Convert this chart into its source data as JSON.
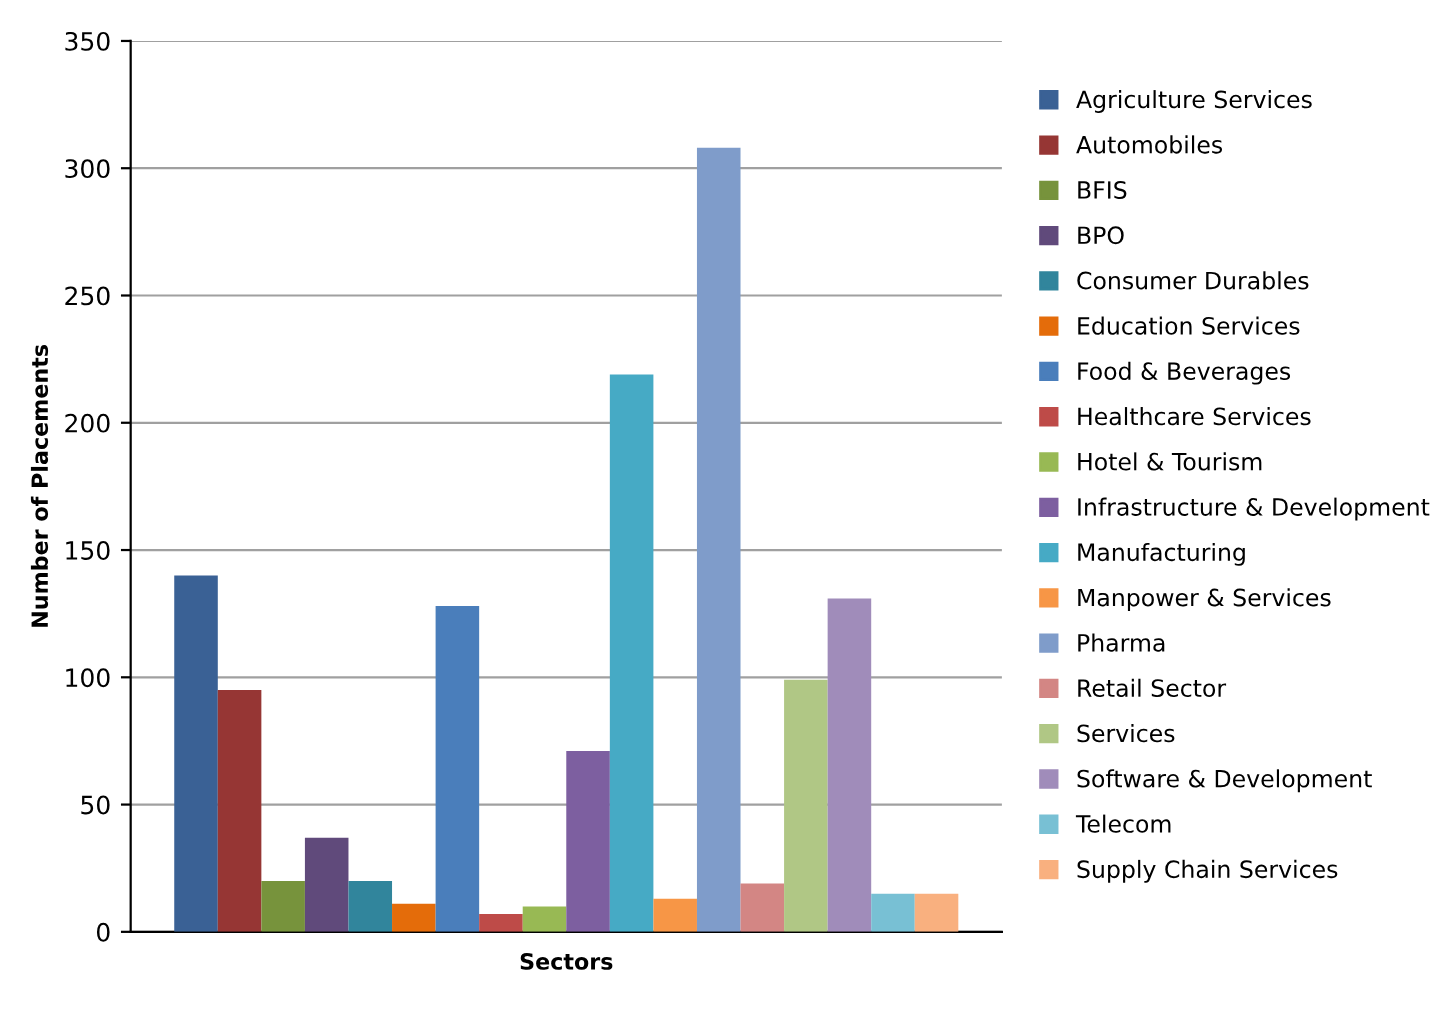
{
  "chart_data": {
    "type": "bar",
    "xlabel": "Sectors",
    "ylabel": "Number of Placements",
    "categories": [
      null
    ],
    "ylim": [
      0,
      350
    ],
    "yticks": [
      0,
      50,
      100,
      150,
      200,
      250,
      300,
      350
    ],
    "grid": "y",
    "legend": "right",
    "series": [
      {
        "name": "Agriculture Services",
        "color": "#3a6195",
        "values": [
          140
        ]
      },
      {
        "name": "Automobiles",
        "color": "#963634",
        "values": [
          95
        ]
      },
      {
        "name": "BFIS",
        "color": "#77933c",
        "values": [
          20
        ]
      },
      {
        "name": "BPO",
        "color": "#604a7b",
        "values": [
          37
        ]
      },
      {
        "name": "Consumer Durables",
        "color": "#31859c",
        "values": [
          20
        ]
      },
      {
        "name": "Education Services",
        "color": "#e46c0a",
        "values": [
          11
        ]
      },
      {
        "name": "Food & Beverages",
        "color": "#4a7ebb",
        "values": [
          128
        ]
      },
      {
        "name": "Healthcare Services",
        "color": "#be4b48",
        "values": [
          7
        ]
      },
      {
        "name": "Hotel & Tourism",
        "color": "#98b954",
        "values": [
          10
        ]
      },
      {
        "name": "Infrastructure & Development",
        "color": "#7d5fa0",
        "values": [
          71
        ]
      },
      {
        "name": "Manufacturing",
        "color": "#46aac5",
        "values": [
          219
        ]
      },
      {
        "name": "Manpower & Services",
        "color": "#f79646",
        "values": [
          13
        ]
      },
      {
        "name": "Pharma",
        "color": "#7f9cca",
        "values": [
          308
        ]
      },
      {
        "name": "Retail Sector",
        "color": "#d38684",
        "values": [
          19
        ]
      },
      {
        "name": "Services",
        "color": "#b0c785",
        "values": [
          99
        ]
      },
      {
        "name": "Software & Development",
        "color": "#a08cba",
        "values": [
          131
        ]
      },
      {
        "name": "Telecom",
        "color": "#78c0d4",
        "values": [
          15
        ]
      },
      {
        "name": "Supply Chain Services",
        "color": "#f9b07f",
        "values": [
          15
        ]
      }
    ]
  }
}
